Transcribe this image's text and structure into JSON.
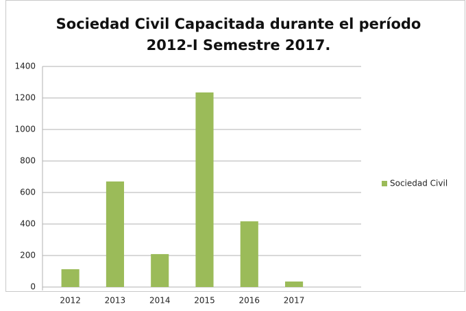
{
  "chart_data": {
    "type": "bar",
    "title": [
      "Sociedad Civil Capacitada durante el período",
      "2012-I Semestre 2017."
    ],
    "categories": [
      "2012",
      "2013",
      "2014",
      "2015",
      "2016",
      "2017",
      null
    ],
    "series": [
      {
        "name": "Sociedad Civil",
        "color": "#9bbb59",
        "values": [
          113,
          670,
          209,
          1235,
          417,
          35,
          null
        ]
      }
    ],
    "ylim": [
      0,
      1400
    ],
    "yticks": [
      0,
      200,
      400,
      600,
      800,
      1000,
      1200,
      1400
    ],
    "grid": true,
    "legend": "right"
  }
}
